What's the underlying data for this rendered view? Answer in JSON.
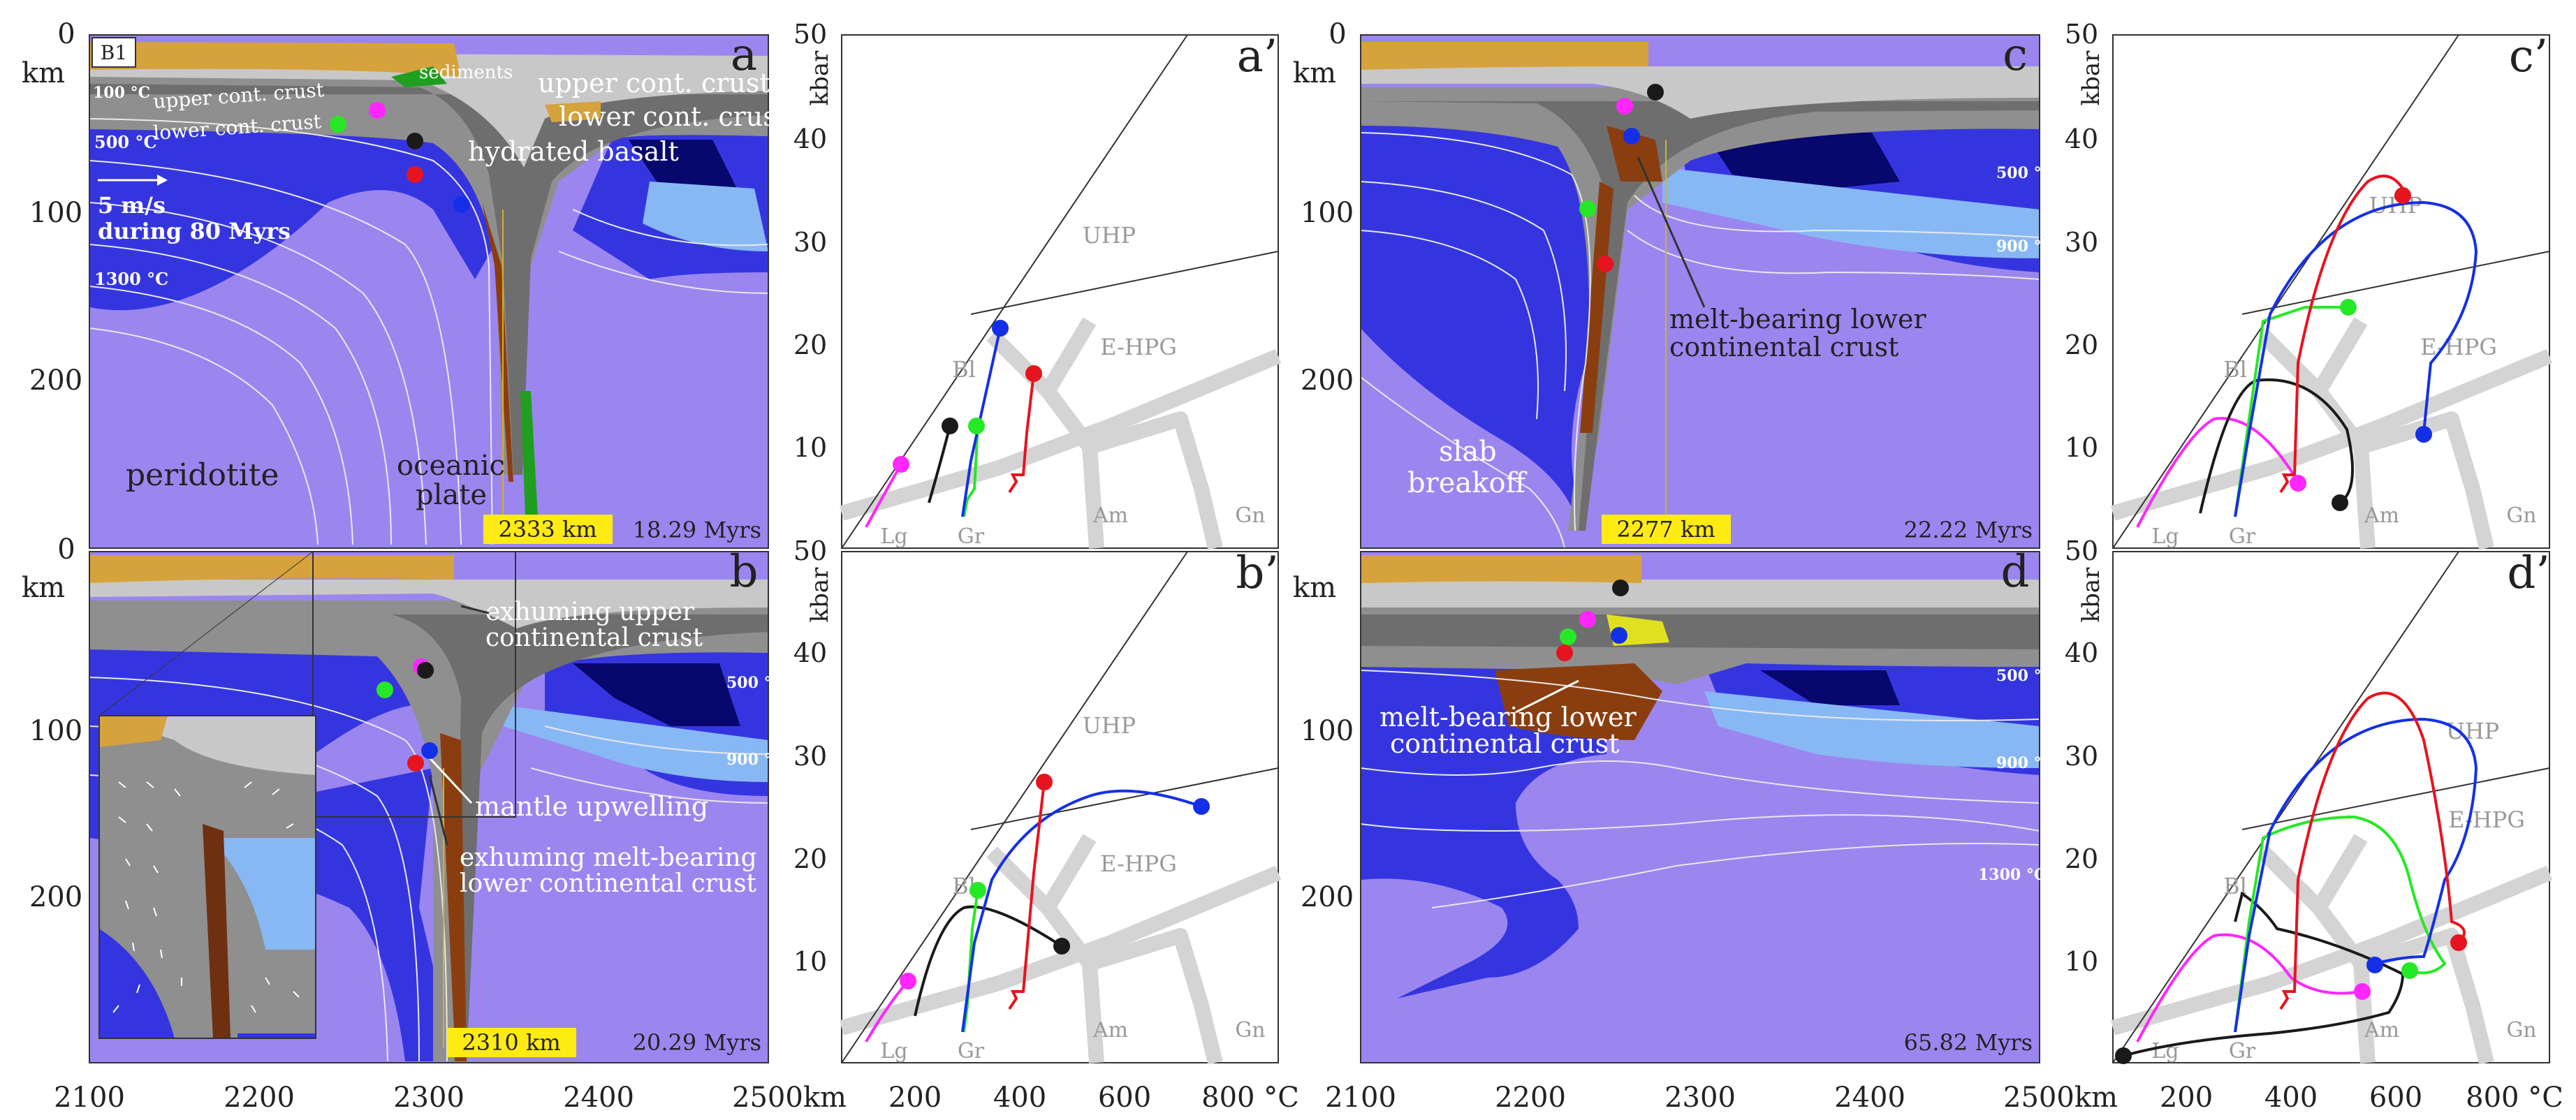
{
  "axes": {
    "depth_unit": "km",
    "depth_ticks": [
      "0",
      "100",
      "200"
    ],
    "x_ticks": [
      "2100",
      "2200",
      "2300",
      "2400",
      "2500km"
    ],
    "pressure_unit": "kbar",
    "pressure_ticks": [
      "10",
      "20",
      "30",
      "40",
      "50"
    ],
    "temp_ticks": [
      "200",
      "400",
      "600",
      "800 °C"
    ]
  },
  "facies": {
    "uhp": "UHP",
    "ehpg": "E-HPG",
    "bl": "Bl",
    "lg": "Lg",
    "gr": "Gr",
    "am": "Am",
    "gn": "Gn"
  },
  "panels": {
    "a": {
      "letter": "a",
      "tag": "B1",
      "position": "2333 km",
      "time": "18.29 Myrs",
      "labels": {
        "sediments": "sediments",
        "upper_crust": "upper cont. crust",
        "lower_crust_r": "lower cont. crust",
        "upper_crust_l": "upper cont. crust",
        "lower_crust_l": "lower cont. crust",
        "basalt": "hydrated basalt",
        "velocity": "5 m/s",
        "velocity_time": "during 80 Myrs",
        "peridotite": "peridotite",
        "oceanic1": "oceanic",
        "oceanic2": "plate",
        "iso100": "100 °C",
        "iso500": "500 °C",
        "iso1300": "1300 °C"
      }
    },
    "b": {
      "letter": "b",
      "position": "2310 km",
      "time": "20.29 Myrs",
      "labels": {
        "exh_upper1": "exhuming upper",
        "exh_upper2": "continental crust",
        "upwelling": "mantle upwelling",
        "exh_lower1": "exhuming melt-bearing",
        "exh_lower2": "lower continental crust",
        "iso500": "500 °C",
        "iso900": "900 °C"
      }
    },
    "c": {
      "letter": "c",
      "position": "2277 km",
      "time": "22.22 Myrs",
      "labels": {
        "melt1": "melt-bearing lower",
        "melt2": "continental crust",
        "slab1": "slab",
        "slab2": "breakoff",
        "iso500": "500 °C",
        "iso900": "900 °C"
      }
    },
    "d": {
      "letter": "d",
      "time": "65.82 Myrs",
      "labels": {
        "melt1": "melt-bearing lower",
        "melt2": "continental crust",
        "iso500": "500 °C",
        "iso900": "900 °C",
        "iso1300": "1300 °C"
      }
    },
    "a_prime": {
      "letter": "a’"
    },
    "b_prime": {
      "letter": "b’"
    },
    "c_prime": {
      "letter": "c’"
    },
    "d_prime": {
      "letter": "d’"
    }
  },
  "colors": {
    "mantle": "#9b86f0",
    "lithosphere": "#3535e0",
    "deep_litho": "#07076e",
    "light_blue": "#88b8f4",
    "crust_grey": "#8f8f8f",
    "crust_dark": "#6e6e6e",
    "crust_light": "#c8c8c8",
    "sediment": "#d6a23c",
    "melt": "#8a3e10",
    "green": "#1f9e1f",
    "marker_magenta": "#ff26ff",
    "marker_green": "#27e827",
    "marker_black": "#1a1a1a",
    "marker_red": "#e6141e",
    "marker_blue": "#1430e6",
    "highlight": "#ffeb14",
    "facies_grey": "#d4d4d4"
  }
}
